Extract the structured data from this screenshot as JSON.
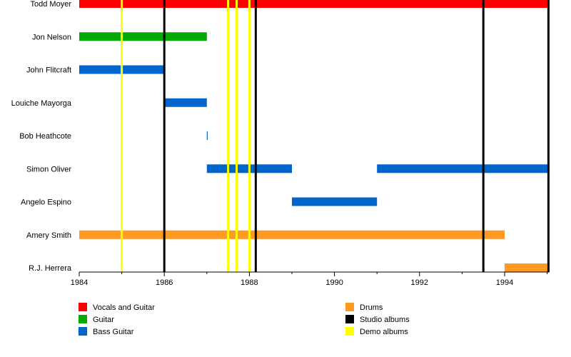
{
  "chart_data": {
    "type": "timeline",
    "title": "",
    "xlim": [
      1984,
      1995.05
    ],
    "x_ticks": [
      1984,
      1986,
      1988,
      1990,
      1992,
      1994
    ],
    "minor_ticks": [
      1985,
      1987,
      1989,
      1991,
      1993,
      1995
    ],
    "members": [
      "Todd Moyer",
      "Jon Nelson",
      "John Flitcraft",
      "Louiche Mayorga",
      "Bob Heathcote",
      "Simon Oliver",
      "Angelo Espino",
      "Amery Smith",
      "R.J. Herrera"
    ],
    "roles": {
      "vocals_guitar": {
        "label": "Vocals and Guitar",
        "color": "#ff0000"
      },
      "guitar": {
        "label": "Guitar",
        "color": "#00aa00"
      },
      "bass": {
        "label": "Bass Guitar",
        "color": "#0066cc"
      },
      "drums": {
        "label": "Drums",
        "color": "#ff9922"
      },
      "studio": {
        "label": "Studio albums",
        "color": "#000000"
      },
      "demo": {
        "label": "Demo albums",
        "color": "#ffff00"
      }
    },
    "bars": [
      {
        "member": 0,
        "role": "vocals_guitar",
        "from": 1984,
        "to": 1995.05
      },
      {
        "member": 1,
        "role": "guitar",
        "from": 1984,
        "to": 1987
      },
      {
        "member": 2,
        "role": "bass",
        "from": 1984,
        "to": 1986
      },
      {
        "member": 3,
        "role": "bass",
        "from": 1986,
        "to": 1987
      },
      {
        "member": 4,
        "role": "bass",
        "from": 1987,
        "to": 1987.02
      },
      {
        "member": 5,
        "role": "bass",
        "from": 1987,
        "to": 1989
      },
      {
        "member": 5,
        "role": "bass",
        "from": 1991,
        "to": 1995.05
      },
      {
        "member": 6,
        "role": "bass",
        "from": 1989,
        "to": 1991
      },
      {
        "member": 7,
        "role": "drums",
        "from": 1984,
        "to": 1994
      },
      {
        "member": 8,
        "role": "drums",
        "from": 1994,
        "to": 1995.05
      }
    ],
    "events": [
      {
        "role": "demo",
        "at": 1985
      },
      {
        "role": "studio",
        "at": 1986
      },
      {
        "role": "demo",
        "at": 1987.5
      },
      {
        "role": "demo",
        "at": 1987.7
      },
      {
        "role": "demo",
        "at": 1988
      },
      {
        "role": "studio",
        "at": 1988.15
      },
      {
        "role": "studio",
        "at": 1993.5
      },
      {
        "role": "studio",
        "at": 1995.03
      }
    ],
    "legend": {
      "placement": "bottom",
      "columns": [
        [
          "vocals_guitar",
          "guitar",
          "bass"
        ],
        [
          "drums",
          "studio",
          "demo"
        ]
      ]
    }
  }
}
